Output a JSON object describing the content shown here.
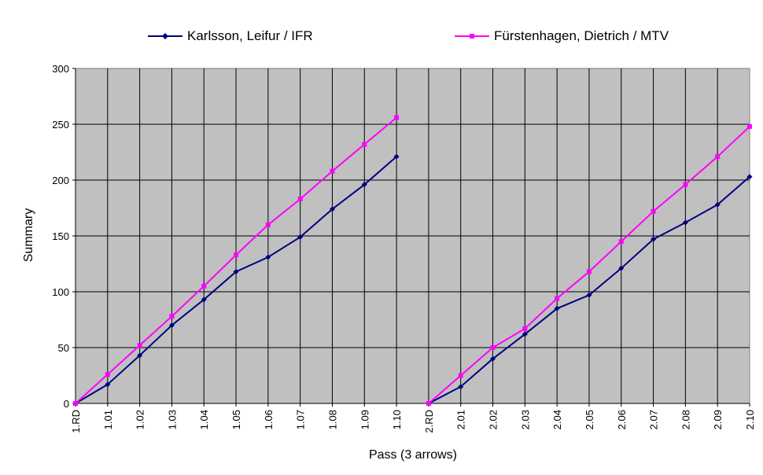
{
  "chart_data": {
    "type": "line",
    "title": "",
    "xlabel": "Pass (3 arrows)",
    "ylabel": "Summary",
    "ylim": [
      0,
      300
    ],
    "yticks": [
      0,
      50,
      100,
      150,
      200,
      250,
      300
    ],
    "grid": true,
    "legend_position": "top",
    "categories": [
      "1.RD",
      "1.01",
      "1.02",
      "1.03",
      "1.04",
      "1.05",
      "1.06",
      "1.07",
      "1.08",
      "1.09",
      "1.10",
      "2.RD",
      "2.01",
      "2.02",
      "2.03",
      "2.04",
      "2.05",
      "2.06",
      "2.07",
      "2.08",
      "2.09",
      "2.10"
    ],
    "series": [
      {
        "name": "Karlsson, Leifur / IFR",
        "color": "#000080",
        "marker": "diamond",
        "values": [
          0,
          17,
          43,
          70,
          93,
          118,
          131,
          149,
          174,
          196,
          221,
          0,
          15,
          40,
          62,
          85,
          97,
          121,
          147,
          162,
          178,
          203
        ]
      },
      {
        "name": "Fürstenhagen, Dietrich / MTV",
        "color": "#ff00ff",
        "marker": "square",
        "values": [
          0,
          26,
          52,
          78,
          105,
          133,
          160,
          183,
          208,
          232,
          256,
          0,
          25,
          50,
          67,
          94,
          118,
          145,
          172,
          196,
          221,
          248
        ]
      }
    ]
  }
}
